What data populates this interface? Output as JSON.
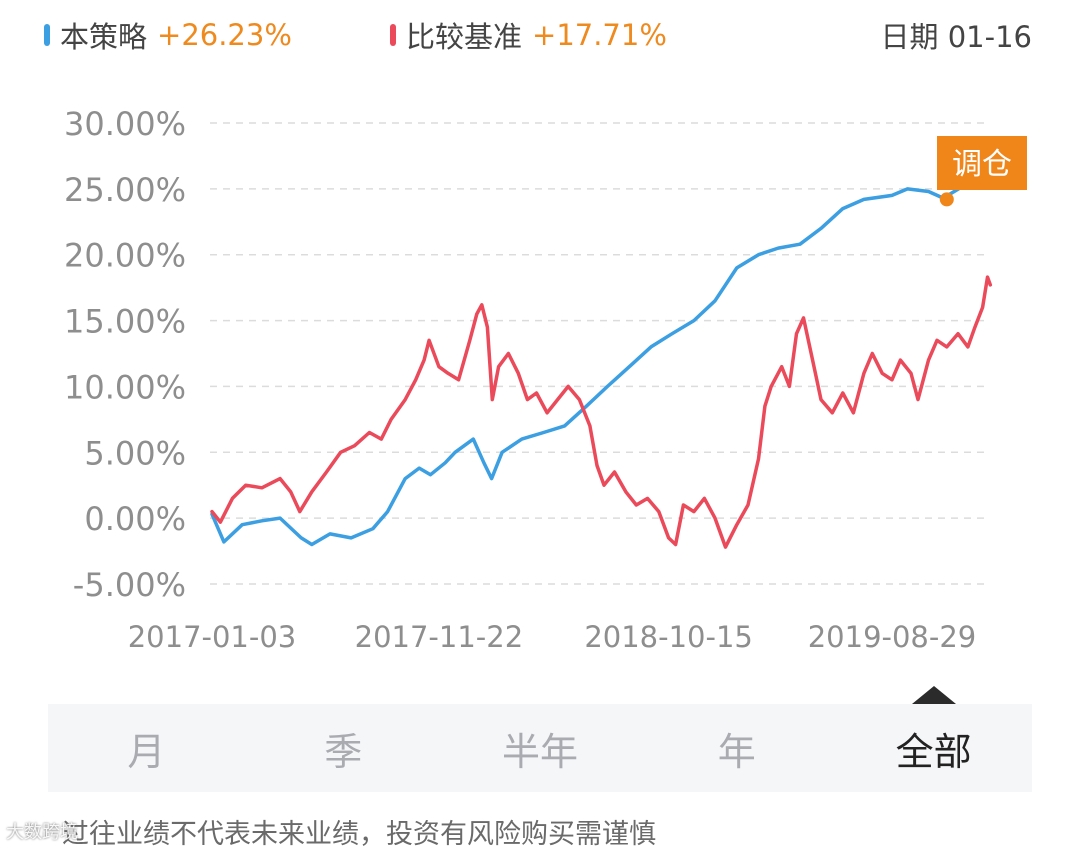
{
  "legend": {
    "strategy": {
      "label": "本策略",
      "value": "+26.23%",
      "color": "#3b9fe2"
    },
    "benchmark": {
      "label": "比较基准",
      "value": "+17.71%",
      "color": "#ea4a5a"
    },
    "date": "日期 01-16"
  },
  "chart_data": {
    "type": "line",
    "y_ticks": [
      "30.00%",
      "25.00%",
      "20.00%",
      "15.00%",
      "10.00%",
      "5.00%",
      "0.00%",
      "-5.00%"
    ],
    "x_ticks": [
      "2017-01-03",
      "2017-11-22",
      "2018-10-15",
      "2019-08-29"
    ],
    "ylim": [
      -5,
      30
    ],
    "xlim": [
      "2017-01-03",
      "2020-01-16"
    ],
    "grid": true,
    "series": [
      {
        "name": "本策略",
        "color": "#3b9fe2",
        "points": [
          [
            "2017-01-03",
            0.3
          ],
          [
            "2017-01-20",
            -1.8
          ],
          [
            "2017-02-15",
            -0.5
          ],
          [
            "2017-03-15",
            -0.2
          ],
          [
            "2017-04-10",
            0.0
          ],
          [
            "2017-05-10",
            -1.5
          ],
          [
            "2017-05-25",
            -2.0
          ],
          [
            "2017-06-20",
            -1.2
          ],
          [
            "2017-07-20",
            -1.5
          ],
          [
            "2017-08-20",
            -0.8
          ],
          [
            "2017-09-10",
            0.5
          ],
          [
            "2017-10-05",
            3.0
          ],
          [
            "2017-10-25",
            3.8
          ],
          [
            "2017-11-10",
            3.3
          ],
          [
            "2017-12-01",
            4.2
          ],
          [
            "2017-12-15",
            5.0
          ],
          [
            "2018-01-10",
            6.0
          ],
          [
            "2018-01-25",
            4.2
          ],
          [
            "2018-02-05",
            3.0
          ],
          [
            "2018-02-20",
            5.0
          ],
          [
            "2018-03-20",
            6.0
          ],
          [
            "2018-04-20",
            6.5
          ],
          [
            "2018-05-20",
            7.0
          ],
          [
            "2018-06-20",
            8.5
          ],
          [
            "2018-07-20",
            10.0
          ],
          [
            "2018-08-20",
            11.5
          ],
          [
            "2018-09-20",
            13.0
          ],
          [
            "2018-10-20",
            14.0
          ],
          [
            "2018-11-20",
            15.0
          ],
          [
            "2018-12-20",
            16.5
          ],
          [
            "2019-01-20",
            19.0
          ],
          [
            "2019-02-20",
            20.0
          ],
          [
            "2019-03-20",
            20.5
          ],
          [
            "2019-04-20",
            20.8
          ],
          [
            "2019-05-20",
            22.0
          ],
          [
            "2019-06-20",
            23.5
          ],
          [
            "2019-07-20",
            24.2
          ],
          [
            "2019-08-29",
            24.5
          ],
          [
            "2019-09-20",
            25.0
          ],
          [
            "2019-10-20",
            24.8
          ],
          [
            "2019-11-10",
            24.3
          ],
          [
            "2019-12-05",
            25.1
          ],
          [
            "2020-01-16",
            26.23
          ]
        ]
      },
      {
        "name": "比较基准",
        "color": "#ea4a5a",
        "points": [
          [
            "2017-01-03",
            0.5
          ],
          [
            "2017-01-15",
            -0.3
          ],
          [
            "2017-02-01",
            1.5
          ],
          [
            "2017-02-20",
            2.5
          ],
          [
            "2017-03-15",
            2.3
          ],
          [
            "2017-04-10",
            3.0
          ],
          [
            "2017-04-25",
            2.0
          ],
          [
            "2017-05-08",
            0.5
          ],
          [
            "2017-05-25",
            2.0
          ],
          [
            "2017-06-15",
            3.5
          ],
          [
            "2017-07-05",
            5.0
          ],
          [
            "2017-07-25",
            5.5
          ],
          [
            "2017-08-15",
            6.5
          ],
          [
            "2017-09-01",
            6.0
          ],
          [
            "2017-09-15",
            7.5
          ],
          [
            "2017-10-05",
            9.0
          ],
          [
            "2017-10-20",
            10.5
          ],
          [
            "2017-11-01",
            12.0
          ],
          [
            "2017-11-08",
            13.5
          ],
          [
            "2017-11-22",
            11.5
          ],
          [
            "2017-12-05",
            11.0
          ],
          [
            "2017-12-20",
            10.5
          ],
          [
            "2018-01-05",
            13.5
          ],
          [
            "2018-01-15",
            15.5
          ],
          [
            "2018-01-22",
            16.2
          ],
          [
            "2018-01-30",
            14.5
          ],
          [
            "2018-02-06",
            9.0
          ],
          [
            "2018-02-15",
            11.5
          ],
          [
            "2018-03-01",
            12.5
          ],
          [
            "2018-03-15",
            11.0
          ],
          [
            "2018-03-28",
            9.0
          ],
          [
            "2018-04-10",
            9.5
          ],
          [
            "2018-04-25",
            8.0
          ],
          [
            "2018-05-10",
            9.0
          ],
          [
            "2018-05-25",
            10.0
          ],
          [
            "2018-06-10",
            9.0
          ],
          [
            "2018-06-25",
            7.0
          ],
          [
            "2018-07-05",
            4.0
          ],
          [
            "2018-07-15",
            2.5
          ],
          [
            "2018-07-30",
            3.5
          ],
          [
            "2018-08-15",
            2.0
          ],
          [
            "2018-08-30",
            1.0
          ],
          [
            "2018-09-15",
            1.5
          ],
          [
            "2018-10-01",
            0.5
          ],
          [
            "2018-10-15",
            -1.5
          ],
          [
            "2018-10-25",
            -2.0
          ],
          [
            "2018-11-05",
            1.0
          ],
          [
            "2018-11-20",
            0.5
          ],
          [
            "2018-12-05",
            1.5
          ],
          [
            "2018-12-20",
            0.0
          ],
          [
            "2019-01-04",
            -2.2
          ],
          [
            "2019-01-20",
            -0.5
          ],
          [
            "2019-02-05",
            1.0
          ],
          [
            "2019-02-20",
            4.5
          ],
          [
            "2019-03-01",
            8.5
          ],
          [
            "2019-03-10",
            10.0
          ],
          [
            "2019-03-25",
            11.5
          ],
          [
            "2019-04-05",
            10.0
          ],
          [
            "2019-04-15",
            14.0
          ],
          [
            "2019-04-25",
            15.2
          ],
          [
            "2019-05-08",
            12.0
          ],
          [
            "2019-05-20",
            9.0
          ],
          [
            "2019-06-05",
            8.0
          ],
          [
            "2019-06-20",
            9.5
          ],
          [
            "2019-07-05",
            8.0
          ],
          [
            "2019-07-20",
            11.0
          ],
          [
            "2019-08-01",
            12.5
          ],
          [
            "2019-08-15",
            11.0
          ],
          [
            "2019-08-29",
            10.5
          ],
          [
            "2019-09-10",
            12.0
          ],
          [
            "2019-09-25",
            11.0
          ],
          [
            "2019-10-05",
            9.0
          ],
          [
            "2019-10-20",
            12.0
          ],
          [
            "2019-11-01",
            13.5
          ],
          [
            "2019-11-15",
            13.0
          ],
          [
            "2019-12-01",
            14.0
          ],
          [
            "2019-12-15",
            13.0
          ],
          [
            "2019-12-25",
            14.5
          ],
          [
            "2020-01-05",
            16.0
          ],
          [
            "2020-01-12",
            18.3
          ],
          [
            "2020-01-16",
            17.71
          ]
        ]
      }
    ],
    "annotations": [
      {
        "date": "2019-11-15",
        "y": 24.2,
        "label": "调仓",
        "color": "#f08519"
      }
    ]
  },
  "range_tabs": [
    "月",
    "季",
    "半年",
    "年",
    "全部"
  ],
  "active_range": "全部",
  "disclaimer": "过往业绩不代表未来业绩，投资有风险购买需谨慎",
  "watermark": "大数跨境"
}
